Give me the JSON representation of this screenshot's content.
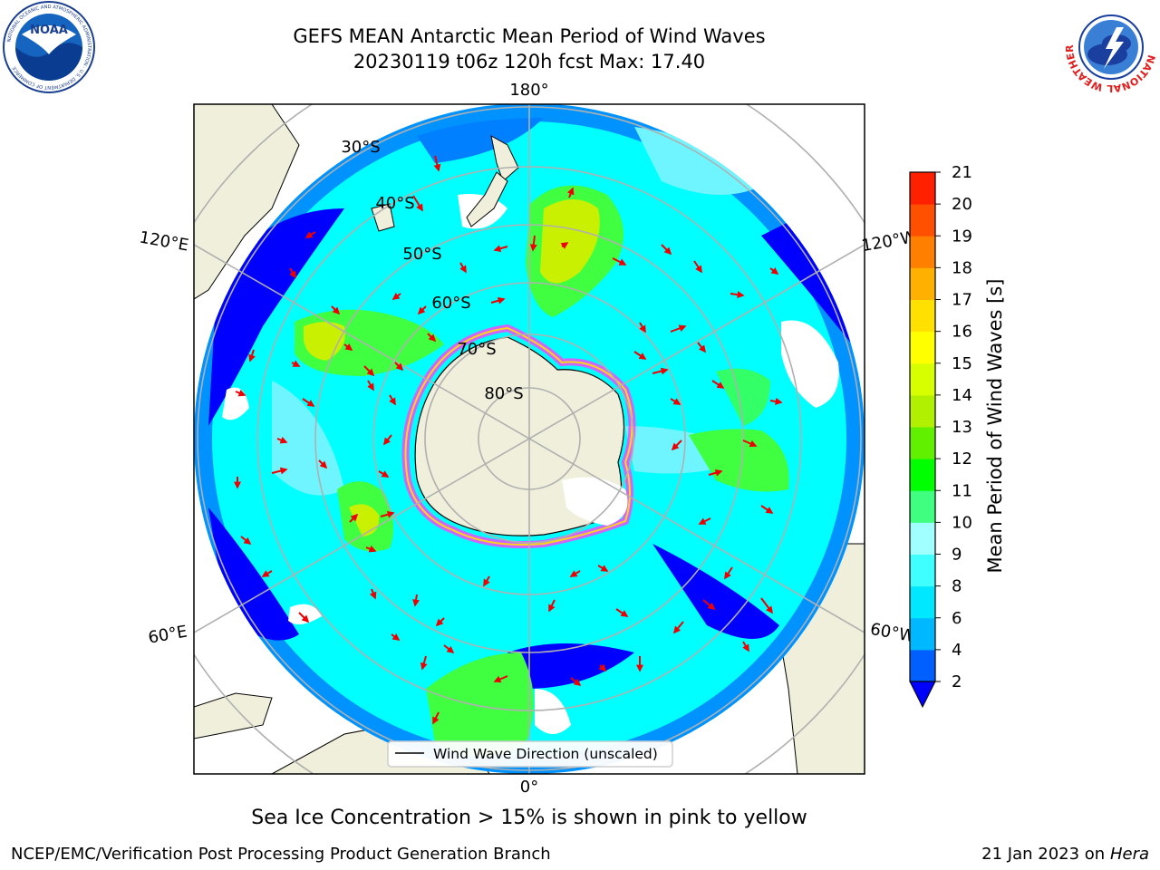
{
  "title": {
    "line1": "GEFS MEAN Antarctic Mean Period of Wind Waves",
    "line2": "20230119 t06z 120h fcst   Max: 17.40"
  },
  "logos": {
    "noaa_text": "NOAA",
    "noaa_ring": "NATIONAL OCEANIC AND ATMOSPHERIC ADMINISTRATION · U.S. DEPARTMENT OF COMMERCE",
    "nws_ring": "NATIONAL WEATHER SERVICE"
  },
  "map": {
    "projection": "south-polar-stereographic",
    "lon_labels": {
      "top": "180°",
      "bottom": "0°",
      "left_upper": "120°E",
      "left_lower": "60°E",
      "right_upper": "120°W",
      "right_lower": "60°W"
    },
    "lat_labels": [
      "30°S",
      "40°S",
      "50°S",
      "60°S",
      "70°S",
      "80°S"
    ],
    "legend": "Wind Wave Direction (unscaled)"
  },
  "colorbar": {
    "label": "Mean Period of Wind Waves [s]",
    "ticks": [
      "2",
      "4",
      "6",
      "8",
      "9",
      "10",
      "11",
      "12",
      "13",
      "14",
      "15",
      "16",
      "17",
      "18",
      "19",
      "20",
      "21"
    ],
    "colors": [
      "#0060ff",
      "#00b8ff",
      "#00e8ff",
      "#40ffff",
      "#a0ffff",
      "#40ff80",
      "#00ff00",
      "#60f000",
      "#b0f000",
      "#d8ff00",
      "#ffff00",
      "#ffe000",
      "#ffb000",
      "#ff8000",
      "#ff5000",
      "#ff2000",
      "#ff0000"
    ],
    "extend_color": "#0000ff"
  },
  "colors": {
    "land": "#efefdb",
    "ocean_blue": "#0000ff",
    "ocean_mid": "#0080ff",
    "ocean_cyan": "#00ffff",
    "ocean_light": "#6ff5ff",
    "green": "#40ff40",
    "yellowgreen": "#c8f000",
    "ice": "#ff40ff",
    "arrow": "#ee0000",
    "grid": "#b0b0b0"
  },
  "caption": "Sea Ice Concentration > 15% is shown in pink to yellow",
  "footer": {
    "left": "NCEP/EMC/Verification Post Processing Product Generation Branch",
    "right_date": "21 Jan 2023 on ",
    "right_host": "Hera"
  }
}
